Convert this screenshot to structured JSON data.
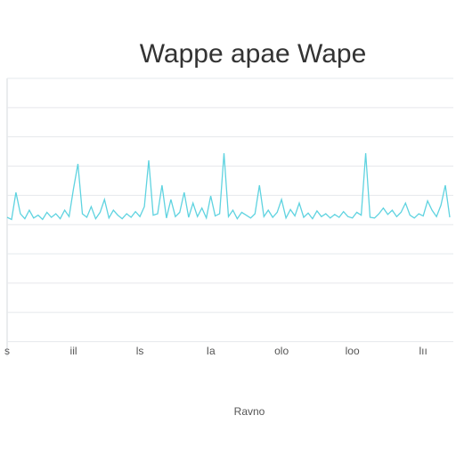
{
  "chart_data": {
    "type": "line",
    "title": "Wappe apae Wape",
    "x_label": "Ravno",
    "x": [
      0,
      1,
      2,
      3,
      4,
      5,
      6,
      7,
      8,
      9,
      10,
      11,
      12,
      13,
      14,
      15,
      16,
      17,
      18,
      19,
      20,
      21,
      22,
      23,
      24,
      25,
      26,
      27,
      28,
      29,
      30,
      31,
      32,
      33,
      34,
      35,
      36,
      37,
      38,
      39,
      40,
      41,
      42,
      43,
      44,
      45,
      46,
      47,
      48,
      49,
      50,
      51,
      52,
      53,
      54,
      55,
      56,
      57,
      58,
      59,
      60,
      61,
      62,
      63,
      64,
      65,
      66,
      67,
      68,
      69,
      70,
      71,
      72,
      73,
      74,
      75,
      76,
      77,
      78,
      79,
      80,
      81,
      82,
      83,
      84,
      85,
      86,
      87,
      88,
      89,
      90,
      91,
      92,
      93,
      94,
      95,
      96,
      97,
      98,
      99,
      100
    ],
    "series": [
      {
        "color": "#5fd3e0",
        "values": [
          0.5,
          0.2,
          4,
          1,
          0.3,
          1.5,
          0.4,
          0.8,
          0.2,
          1.2,
          0.5,
          1,
          0.3,
          1.5,
          0.6,
          4.5,
          8,
          1,
          0.5,
          2,
          0.3,
          1.2,
          3,
          0.4,
          1.5,
          0.8,
          0.3,
          1,
          0.5,
          1.3,
          0.6,
          2,
          8.5,
          0.8,
          1,
          5,
          0.4,
          3,
          0.6,
          1.2,
          4,
          0.5,
          2.5,
          0.6,
          1.8,
          0.4,
          3.5,
          0.7,
          1,
          9.5,
          0.6,
          1.5,
          0.3,
          1.2,
          0.8,
          0.4,
          1,
          5,
          0.6,
          1.5,
          0.5,
          1.2,
          3,
          0.4,
          1.6,
          0.7,
          2.5,
          0.5,
          1.1,
          0.3,
          1.4,
          0.6,
          1,
          0.4,
          0.9,
          0.5,
          1.3,
          0.6,
          0.4,
          1.2,
          0.8,
          9.5,
          0.5,
          0.4,
          1,
          1.8,
          0.9,
          1.5,
          0.6,
          1.2,
          2.5,
          0.8,
          0.4,
          1,
          0.7,
          2.8,
          1.5,
          0.6,
          2.2,
          5,
          0.5
        ]
      }
    ],
    "xlim": [
      0,
      100
    ],
    "ylim": [
      -19,
      20
    ],
    "xticks": [
      {
        "value": 0,
        "label": "s"
      },
      {
        "value": 15,
        "label": "iil"
      },
      {
        "value": 30,
        "label": "ls"
      },
      {
        "value": 46,
        "label": "Ia"
      },
      {
        "value": 62,
        "label": "olo"
      },
      {
        "value": 78,
        "label": "loo"
      },
      {
        "value": 94,
        "label": "lıı"
      }
    ],
    "grid": true
  }
}
